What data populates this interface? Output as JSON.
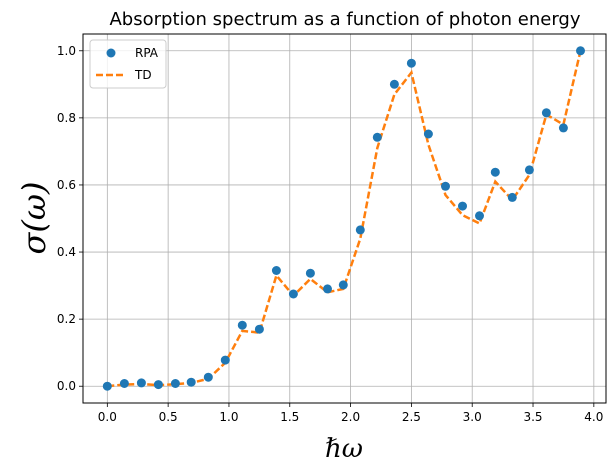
{
  "chart_data": {
    "type": "line",
    "title": "Absorption spectrum as a function of photon energy",
    "xlabel": "ℏω",
    "ylabel": "σ(ω)",
    "xlim": [
      -0.2,
      4.1
    ],
    "ylim": [
      -0.05,
      1.05
    ],
    "xticks": [
      0.0,
      0.5,
      1.0,
      1.5,
      2.0,
      2.5,
      3.0,
      3.5,
      4.0
    ],
    "xtick_labels": [
      "0.0",
      "0.5",
      "1.0",
      "1.5",
      "2.0",
      "2.5",
      "3.0",
      "3.5",
      "4.0"
    ],
    "yticks": [
      0.0,
      0.2,
      0.4,
      0.6,
      0.8,
      1.0
    ],
    "ytick_labels": [
      "0.0",
      "0.2",
      "0.4",
      "0.6",
      "0.8",
      "1.0"
    ],
    "grid": true,
    "legend_position": "top-left",
    "series": [
      {
        "name": "RPA",
        "style": "markers",
        "color": "#1f77b4",
        "x": [
          0.0,
          0.14,
          0.28,
          0.42,
          0.56,
          0.69,
          0.83,
          0.97,
          1.11,
          1.25,
          1.39,
          1.53,
          1.67,
          1.81,
          1.94,
          2.08,
          2.22,
          2.36,
          2.5,
          2.64,
          2.78,
          2.92,
          3.06,
          3.19,
          3.33,
          3.47,
          3.61,
          3.75,
          3.89
        ],
        "y": [
          0.0,
          0.008,
          0.01,
          0.005,
          0.008,
          0.012,
          0.027,
          0.078,
          0.182,
          0.17,
          0.345,
          0.275,
          0.337,
          0.29,
          0.302,
          0.466,
          0.742,
          0.9,
          0.963,
          0.752,
          0.596,
          0.537,
          0.508,
          0.638,
          0.563,
          0.645,
          0.815,
          0.77,
          1.0
        ]
      },
      {
        "name": "TD",
        "style": "dashed",
        "color": "#ff7f0e",
        "x": [
          0.0,
          0.14,
          0.28,
          0.42,
          0.56,
          0.69,
          0.83,
          0.97,
          1.11,
          1.25,
          1.39,
          1.53,
          1.67,
          1.81,
          1.94,
          2.08,
          2.22,
          2.36,
          2.5,
          2.64,
          2.78,
          2.92,
          3.06,
          3.19,
          3.33,
          3.47,
          3.61,
          3.75,
          3.89
        ],
        "y": [
          0.0,
          0.005,
          0.007,
          0.003,
          0.006,
          0.01,
          0.022,
          0.07,
          0.165,
          0.16,
          0.33,
          0.27,
          0.32,
          0.28,
          0.29,
          0.44,
          0.71,
          0.87,
          0.935,
          0.72,
          0.57,
          0.51,
          0.485,
          0.61,
          0.555,
          0.63,
          0.81,
          0.78,
          1.0
        ]
      }
    ]
  }
}
